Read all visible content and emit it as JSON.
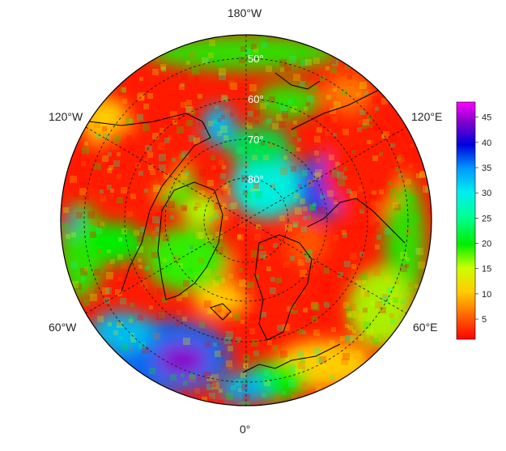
{
  "map": {
    "projection": "north-polar-stereographic",
    "longitude_labels": {
      "top": "180°W",
      "upper_left": "120°W",
      "upper_right": "120°E",
      "lower_left": "60°W",
      "lower_right": "60°E",
      "bottom": "0°"
    },
    "latitude_labels": [
      "50°",
      "60°",
      "70°",
      "80°"
    ]
  },
  "colorbar": {
    "ticks": [
      "5",
      "10",
      "15",
      "20",
      "25",
      "30",
      "35",
      "40",
      "45"
    ],
    "min": 1,
    "max": 48,
    "colors": [
      "#ff0000",
      "#ff6600",
      "#ffcc00",
      "#ccff00",
      "#00ee00",
      "#00ff99",
      "#00eeee",
      "#0099ff",
      "#0000dd",
      "#8800cc",
      "#ff00ff"
    ]
  }
}
